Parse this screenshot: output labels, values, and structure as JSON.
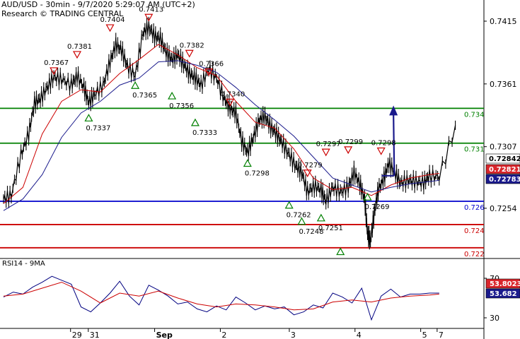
{
  "header": {
    "line1": "AUD/USD - 30min - 9/7/2020 5:29:07 AM (UTC+2)",
    "line2": "Research © TRADING CENTRAL"
  },
  "chart_data": [
    {
      "type": "line",
      "title": "AUD/USD - 30min - 9/7/2020 5:29:07 AM (UTC+2)",
      "subtitle": "Research © TRADING CENTRAL",
      "x_tick_labels": [
        "29",
        "31",
        "Sep",
        "2",
        "3",
        "4",
        "5",
        "7"
      ],
      "y_tick_labels": [
        "0.7415",
        "0.7361",
        "0.7307",
        "0.7254"
      ],
      "ylim": [
        0.7212,
        0.7432
      ],
      "price_path": [
        [
          0.0,
          0.7262
        ],
        [
          0.8,
          0.7265
        ],
        [
          1.8,
          0.73
        ],
        [
          2.6,
          0.7318
        ],
        [
          3.2,
          0.7345
        ],
        [
          3.8,
          0.7348
        ],
        [
          4.5,
          0.7358
        ],
        [
          5.2,
          0.7367
        ],
        [
          6.0,
          0.7365
        ],
        [
          7.0,
          0.736
        ],
        [
          7.6,
          0.7368
        ],
        [
          8.3,
          0.7358
        ],
        [
          8.8,
          0.7345
        ],
        [
          9.4,
          0.7352
        ],
        [
          10.3,
          0.736
        ],
        [
          11.0,
          0.738
        ],
        [
          11.6,
          0.7395
        ],
        [
          12.2,
          0.739
        ],
        [
          12.8,
          0.7376
        ],
        [
          13.6,
          0.7368
        ],
        [
          14.4,
          0.7405
        ],
        [
          15.0,
          0.741
        ],
        [
          15.6,
          0.7402
        ],
        [
          16.2,
          0.74
        ],
        [
          16.8,
          0.7388
        ],
        [
          17.4,
          0.7382
        ],
        [
          18.0,
          0.7386
        ],
        [
          18.6,
          0.7378
        ],
        [
          19.2,
          0.737
        ],
        [
          19.8,
          0.7366
        ],
        [
          20.4,
          0.736
        ],
        [
          21.2,
          0.7374
        ],
        [
          22.0,
          0.7366
        ],
        [
          22.8,
          0.7348
        ],
        [
          23.4,
          0.734
        ],
        [
          24.0,
          0.7336
        ],
        [
          24.6,
          0.7312
        ],
        [
          25.2,
          0.7302
        ],
        [
          25.8,
          0.7315
        ],
        [
          26.4,
          0.733
        ],
        [
          27.0,
          0.7333
        ],
        [
          27.6,
          0.7324
        ],
        [
          28.2,
          0.7318
        ],
        [
          28.8,
          0.731
        ],
        [
          29.5,
          0.73
        ],
        [
          30.2,
          0.729
        ],
        [
          30.8,
          0.7285
        ],
        [
          31.4,
          0.7268
        ],
        [
          32.1,
          0.7273
        ],
        [
          32.8,
          0.727
        ],
        [
          33.3,
          0.726
        ],
        [
          34.0,
          0.7272
        ],
        [
          34.8,
          0.7268
        ],
        [
          35.6,
          0.7272
        ],
        [
          36.2,
          0.7285
        ],
        [
          36.8,
          0.7275
        ],
        [
          37.3,
          0.7262
        ],
        [
          37.6,
          0.7232
        ],
        [
          37.9,
          0.7226
        ],
        [
          38.3,
          0.725
        ],
        [
          38.7,
          0.727
        ],
        [
          39.3,
          0.728
        ],
        [
          39.8,
          0.7293
        ],
        [
          40.4,
          0.7285
        ],
        [
          41.0,
          0.7276
        ],
        [
          41.8,
          0.7278
        ],
        [
          42.6,
          0.7277
        ],
        [
          43.4,
          0.7276
        ],
        [
          44.0,
          0.7282
        ],
        [
          45.0,
          0.7281
        ],
        [
          47.0,
          0.7332
        ]
      ],
      "moving_averages": [
        {
          "color": "#cc0000",
          "values": [
            [
              0.0,
              0.7258
            ],
            [
              2.0,
              0.7272
            ],
            [
              4.0,
              0.7318
            ],
            [
              6.0,
              0.7346
            ],
            [
              8.0,
              0.7356
            ],
            [
              10.0,
              0.7354
            ],
            [
              12.0,
              0.737
            ],
            [
              14.0,
              0.7382
            ],
            [
              16.0,
              0.7395
            ],
            [
              18.0,
              0.7386
            ],
            [
              20.0,
              0.7375
            ],
            [
              22.0,
              0.7368
            ],
            [
              24.0,
              0.7346
            ],
            [
              26.0,
              0.7328
            ],
            [
              28.0,
              0.7323
            ],
            [
              30.0,
              0.7305
            ],
            [
              32.0,
              0.728
            ],
            [
              34.0,
              0.727
            ],
            [
              36.0,
              0.7272
            ],
            [
              38.0,
              0.7265
            ],
            [
              40.0,
              0.7274
            ],
            [
              42.0,
              0.728
            ],
            [
              44.0,
              0.7283
            ],
            [
              45.0,
              0.7284
            ]
          ]
        },
        {
          "color": "#1a1a8c",
          "values": [
            [
              0.0,
              0.7252
            ],
            [
              2.0,
              0.7262
            ],
            [
              4.0,
              0.7283
            ],
            [
              6.0,
              0.7315
            ],
            [
              8.0,
              0.7336
            ],
            [
              10.0,
              0.7346
            ],
            [
              12.0,
              0.736
            ],
            [
              14.0,
              0.7366
            ],
            [
              16.0,
              0.738
            ],
            [
              18.0,
              0.7381
            ],
            [
              20.0,
              0.7377
            ],
            [
              22.0,
              0.7371
            ],
            [
              24.0,
              0.7358
            ],
            [
              26.0,
              0.7343
            ],
            [
              28.0,
              0.733
            ],
            [
              30.0,
              0.7316
            ],
            [
              32.0,
              0.7298
            ],
            [
              34.0,
              0.728
            ],
            [
              36.0,
              0.7274
            ],
            [
              38.0,
              0.7268
            ],
            [
              40.0,
              0.7272
            ],
            [
              42.0,
              0.7275
            ],
            [
              44.0,
              0.7277
            ],
            [
              45.0,
              0.7278
            ]
          ]
        }
      ],
      "horizontal_levels": [
        {
          "value": 0.734,
          "label": "0.734",
          "color": "#008000"
        },
        {
          "value": 0.731,
          "label": "0.731",
          "color": "#008000"
        },
        {
          "value": 0.726,
          "label": "0.726",
          "color": "#0000cc"
        },
        {
          "value": 0.724,
          "label": "0.724",
          "color": "#cc0000"
        },
        {
          "value": 0.722,
          "label": "0.722",
          "color": "#cc0000"
        }
      ],
      "price_boxes": [
        {
          "label": "0.72842",
          "bg": "#ffffff",
          "fg": "#000000"
        },
        {
          "label": "0.72821",
          "bg": "#d9262c",
          "fg": "#ffffff"
        },
        {
          "label": "0.72783",
          "bg": "#1a1a8c",
          "fg": "#ffffff"
        }
      ],
      "pivot_annotations": [
        {
          "x": 5.2,
          "value": 0.7367,
          "kind": "high",
          "label": "0.7367"
        },
        {
          "x": 7.6,
          "value": 0.7381,
          "kind": "high",
          "label": "0.7381"
        },
        {
          "x": 8.8,
          "value": 0.7337,
          "kind": "low",
          "label": "0.7337"
        },
        {
          "x": 11.0,
          "value": 0.7404,
          "kind": "high",
          "label": "0.7404"
        },
        {
          "x": 13.6,
          "value": 0.7365,
          "kind": "low",
          "label": "0.7365"
        },
        {
          "x": 15.0,
          "value": 0.7413,
          "kind": "high",
          "label": "0.7413"
        },
        {
          "x": 17.4,
          "value": 0.7356,
          "kind": "low",
          "label": "0.7356"
        },
        {
          "x": 19.2,
          "value": 0.7382,
          "kind": "high",
          "label": "0.7382"
        },
        {
          "x": 19.8,
          "value": 0.7333,
          "kind": "low",
          "label": "0.7333"
        },
        {
          "x": 21.2,
          "value": 0.7366,
          "kind": "high",
          "label": "0.7366"
        },
        {
          "x": 23.4,
          "value": 0.734,
          "kind": "high",
          "label": "0.7340"
        },
        {
          "x": 25.2,
          "value": 0.7298,
          "kind": "low",
          "label": "0.7298"
        },
        {
          "x": 29.5,
          "value": 0.7262,
          "kind": "low",
          "label": "0.7262"
        },
        {
          "x": 30.8,
          "value": 0.7248,
          "kind": "low",
          "label": "0.7248"
        },
        {
          "x": 31.4,
          "value": 0.7279,
          "kind": "high",
          "label": "0.7279"
        },
        {
          "x": 32.8,
          "value": 0.7251,
          "kind": "low",
          "label": "0.7251"
        },
        {
          "x": 33.3,
          "value": 0.7297,
          "kind": "high",
          "label": "0.7297"
        },
        {
          "x": 34.8,
          "value": 0.7222,
          "kind": "low",
          "label": ""
        },
        {
          "x": 35.6,
          "value": 0.7299,
          "kind": "high",
          "label": "0.7299"
        },
        {
          "x": 37.6,
          "value": 0.7269,
          "kind": "low",
          "label": "0.7269"
        },
        {
          "x": 39.0,
          "value": 0.7298,
          "kind": "high",
          "label": "0.7298"
        }
      ],
      "forecast_arrow": {
        "from": [
          38.9,
          0.7282
        ],
        "to": [
          39.4,
          0.734
        ],
        "color": "#1a1a8c"
      }
    },
    {
      "type": "line",
      "title": "RSI14 - 9MA",
      "y_tick_labels": [
        "70",
        "30"
      ],
      "ylim": [
        20,
        80
      ],
      "series": [
        {
          "name": "RSI14",
          "color": "#000080",
          "values": [
            [
              0.0,
              51
            ],
            [
              1.0,
              56
            ],
            [
              2.0,
              54
            ],
            [
              3.0,
              61
            ],
            [
              4.0,
              66
            ],
            [
              5.0,
              72
            ],
            [
              6.0,
              68
            ],
            [
              7.0,
              64
            ],
            [
              8.0,
              41
            ],
            [
              9.0,
              36
            ],
            [
              10.0,
              45
            ],
            [
              11.0,
              55
            ],
            [
              12.0,
              67
            ],
            [
              13.0,
              52
            ],
            [
              14.0,
              43
            ],
            [
              15.0,
              63
            ],
            [
              16.0,
              58
            ],
            [
              17.0,
              52
            ],
            [
              18.0,
              44
            ],
            [
              19.0,
              46
            ],
            [
              20.0,
              39
            ],
            [
              21.0,
              36
            ],
            [
              22.0,
              42
            ],
            [
              23.0,
              38
            ],
            [
              24.0,
              51
            ],
            [
              25.0,
              45
            ],
            [
              26.0,
              38
            ],
            [
              27.0,
              42
            ],
            [
              28.0,
              39
            ],
            [
              29.0,
              41
            ],
            [
              30.0,
              33
            ],
            [
              31.0,
              36
            ],
            [
              32.0,
              43
            ],
            [
              33.0,
              40
            ],
            [
              34.0,
              55
            ],
            [
              35.0,
              51
            ],
            [
              36.0,
              45
            ],
            [
              37.0,
              60
            ],
            [
              38.0,
              28
            ],
            [
              39.0,
              52
            ],
            [
              40.0,
              59
            ],
            [
              41.0,
              51
            ],
            [
              42.0,
              54
            ],
            [
              43.0,
              54
            ],
            [
              44.0,
              55
            ],
            [
              45.0,
              55
            ]
          ]
        },
        {
          "name": "9MA",
          "color": "#cc0000",
          "values": [
            [
              0.0,
              52
            ],
            [
              2.0,
              54
            ],
            [
              4.0,
              60
            ],
            [
              6.0,
              66
            ],
            [
              8.0,
              57
            ],
            [
              10.0,
              45
            ],
            [
              12.0,
              55
            ],
            [
              14.0,
              52
            ],
            [
              16.0,
              57
            ],
            [
              18.0,
              50
            ],
            [
              20.0,
              44
            ],
            [
              22.0,
              41
            ],
            [
              24.0,
              44
            ],
            [
              26.0,
              43
            ],
            [
              28.0,
              41
            ],
            [
              30.0,
              38
            ],
            [
              32.0,
              39
            ],
            [
              34.0,
              46
            ],
            [
              36.0,
              48
            ],
            [
              38.0,
              46
            ],
            [
              40.0,
              50
            ],
            [
              42.0,
              52
            ],
            [
              44.0,
              53
            ],
            [
              45.0,
              54
            ]
          ]
        }
      ],
      "value_boxes": [
        {
          "label": "53.8023",
          "bg": "#d9262c",
          "fg": "#ffffff"
        },
        {
          "label": "53.682",
          "bg": "#1a1a8c",
          "fg": "#ffffff"
        }
      ]
    }
  ]
}
